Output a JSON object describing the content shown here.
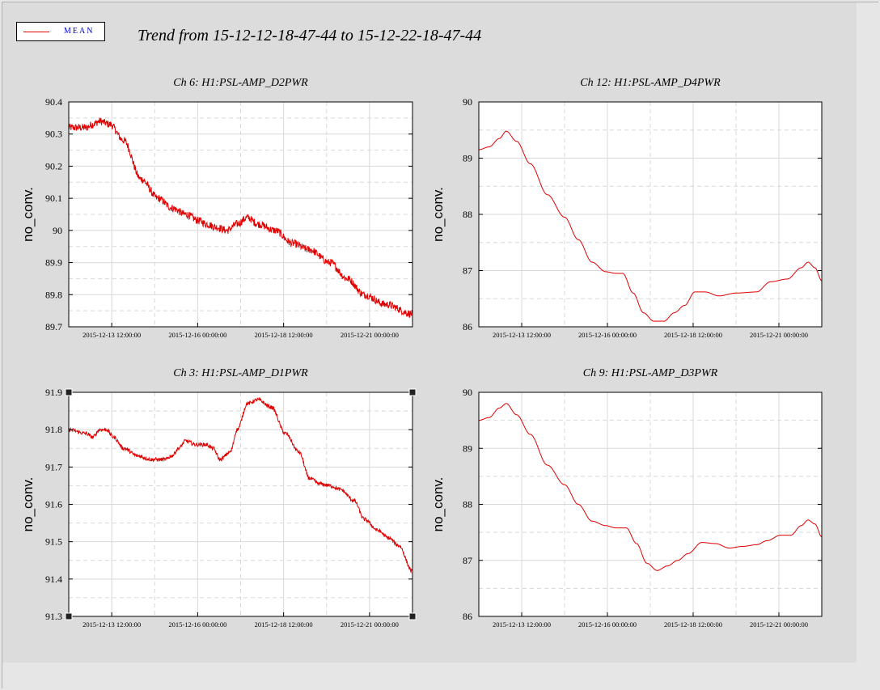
{
  "legend": {
    "label": "MEAN",
    "color": "#e00000"
  },
  "title": "Trend from 15-12-12-18-47-44 to 15-12-22-18-47-44",
  "chart_data": [
    {
      "type": "line",
      "title": "Ch 6: H1:PSL-AMP_D2PWR",
      "ylabel": "no_conv.",
      "ylim": [
        89.7,
        90.4
      ],
      "yticks": [
        "89.7",
        "89.8",
        "89.9",
        "90",
        "90.1",
        "90.2",
        "90.3",
        "90.4"
      ],
      "xticks": [
        "2015-12-13 12:00:00",
        "2015-12-16 00:00:00",
        "2015-12-18 12:00:00",
        "2015-12-21 00:00:00"
      ],
      "xlim_days": [
        0,
        10
      ],
      "series": [
        {
          "name": "MEAN",
          "color": "#e00000",
          "noise": 0.012,
          "x": [
            0,
            0.5,
            0.7,
            0.9,
            1.2,
            1.6,
            2.1,
            2.6,
            3.0,
            3.4,
            3.8,
            4.0,
            4.3,
            4.6,
            4.9,
            5.2,
            5.5,
            6.0,
            6.5,
            7.0,
            7.6,
            8.1,
            8.6,
            9.2,
            10
          ],
          "y": [
            90.32,
            90.32,
            90.33,
            90.34,
            90.33,
            90.28,
            90.16,
            90.1,
            90.07,
            90.05,
            90.03,
            90.02,
            90.01,
            90.0,
            90.02,
            90.04,
            90.02,
            90.0,
            89.96,
            89.94,
            89.9,
            89.85,
            89.8,
            89.77,
            89.74
          ]
        }
      ]
    },
    {
      "type": "line",
      "title": "Ch 12: H1:PSL-AMP_D4PWR",
      "ylabel": "no_conv.",
      "ylim": [
        86,
        90
      ],
      "yticks": [
        "86",
        "87",
        "88",
        "89",
        "90"
      ],
      "xticks": [
        "2015-12-13 12:00:00",
        "2015-12-16 00:00:00",
        "2015-12-18 12:00:00",
        "2015-12-21 00:00:00"
      ],
      "xlim_days": [
        0,
        10
      ],
      "series": [
        {
          "name": "MEAN",
          "color": "#e00000",
          "noise": 0.01,
          "x": [
            0,
            0.3,
            0.6,
            0.8,
            1.1,
            1.5,
            2.0,
            2.5,
            2.9,
            3.3,
            3.7,
            4.0,
            4.2,
            4.5,
            4.8,
            5.1,
            5.4,
            5.7,
            6.0,
            6.3,
            6.6,
            7.0,
            7.5,
            8.1,
            8.5,
            9.0,
            9.4,
            9.6,
            9.8,
            10
          ],
          "y": [
            89.15,
            89.2,
            89.35,
            89.48,
            89.3,
            88.9,
            88.35,
            87.95,
            87.55,
            87.15,
            86.98,
            86.95,
            86.95,
            86.6,
            86.25,
            86.1,
            86.1,
            86.25,
            86.38,
            86.62,
            86.62,
            86.55,
            86.6,
            86.62,
            86.8,
            86.85,
            87.05,
            87.15,
            87.05,
            86.82
          ]
        }
      ]
    },
    {
      "type": "line",
      "title": "Ch 3: H1:PSL-AMP_D1PWR",
      "ylabel": "no_conv.",
      "ylim": [
        91.3,
        91.9
      ],
      "yticks": [
        "91.3",
        "91.4",
        "91.5",
        "91.6",
        "91.7",
        "91.8",
        "91.9"
      ],
      "xticks": [
        "2015-12-13 12:00:00",
        "2015-12-16 00:00:00",
        "2015-12-18 12:00:00",
        "2015-12-21 00:00:00"
      ],
      "xlim_days": [
        0,
        10
      ],
      "series": [
        {
          "name": "MEAN",
          "color": "#e00000",
          "noise": 0.006,
          "x": [
            0,
            0.5,
            0.7,
            0.9,
            1.1,
            1.3,
            1.6,
            2.0,
            2.4,
            2.8,
            3.0,
            3.2,
            3.4,
            3.7,
            4.0,
            4.2,
            4.4,
            4.7,
            4.9,
            5.2,
            5.5,
            5.9,
            6.3,
            6.7,
            7.0,
            7.3,
            7.6,
            7.9,
            8.3,
            8.6,
            9.0,
            9.3,
            9.6,
            10
          ],
          "y": [
            91.8,
            91.79,
            91.78,
            91.8,
            91.8,
            91.78,
            91.75,
            91.73,
            91.72,
            91.72,
            91.73,
            91.75,
            91.77,
            91.76,
            91.76,
            91.75,
            91.72,
            91.74,
            91.8,
            91.87,
            91.88,
            91.86,
            91.79,
            91.74,
            91.67,
            91.655,
            91.65,
            91.64,
            91.61,
            91.56,
            91.53,
            91.51,
            91.49,
            91.42
          ]
        }
      ]
    },
    {
      "type": "line",
      "title": "Ch 9: H1:PSL-AMP_D3PWR",
      "ylabel": "no_conv.",
      "ylim": [
        86,
        90
      ],
      "yticks": [
        "86",
        "87",
        "88",
        "89",
        "90"
      ],
      "xticks": [
        "2015-12-13 12:00:00",
        "2015-12-16 00:00:00",
        "2015-12-18 12:00:00",
        "2015-12-21 00:00:00"
      ],
      "xlim_days": [
        0,
        10
      ],
      "series": [
        {
          "name": "MEAN",
          "color": "#e00000",
          "noise": 0.01,
          "x": [
            0,
            0.3,
            0.6,
            0.8,
            1.1,
            1.5,
            2.0,
            2.5,
            2.9,
            3.3,
            3.7,
            4.0,
            4.3,
            4.6,
            4.9,
            5.2,
            5.5,
            5.8,
            6.1,
            6.5,
            6.9,
            7.3,
            7.7,
            8.1,
            8.4,
            8.8,
            9.1,
            9.4,
            9.6,
            9.8,
            10
          ],
          "y": [
            89.5,
            89.55,
            89.72,
            89.8,
            89.6,
            89.25,
            88.7,
            88.35,
            88.0,
            87.7,
            87.62,
            87.58,
            87.58,
            87.3,
            86.95,
            86.82,
            86.9,
            87.0,
            87.12,
            87.32,
            87.3,
            87.22,
            87.25,
            87.28,
            87.35,
            87.45,
            87.45,
            87.62,
            87.72,
            87.65,
            87.42
          ]
        }
      ]
    }
  ]
}
